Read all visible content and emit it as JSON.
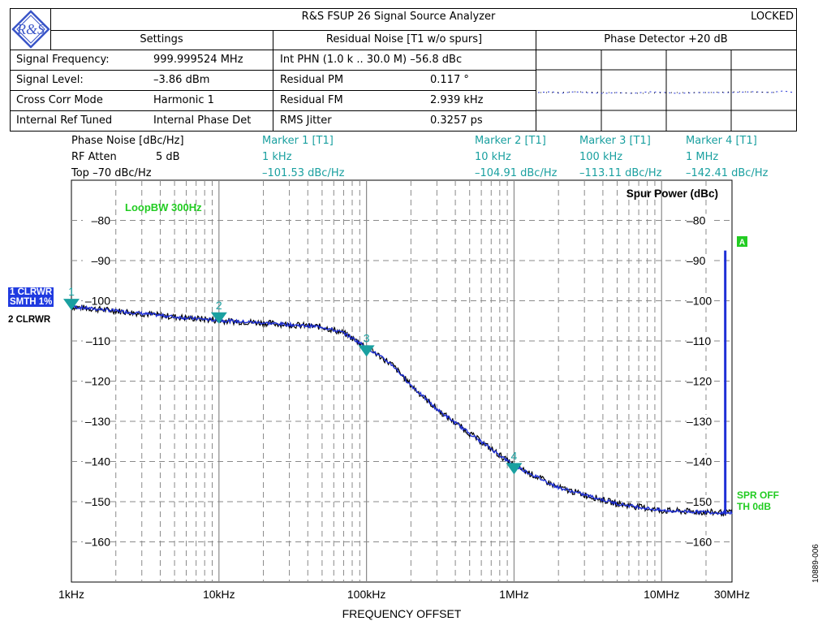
{
  "header": {
    "title": "R&S FSUP 26 Signal Source Analyzer",
    "status": "LOCKED",
    "settings_label": "Settings",
    "residual_label": "Residual Noise [T1 w/o spurs]",
    "phase_detector_label": "Phase Detector +20 dB",
    "logo_text": "R&S"
  },
  "settings": [
    {
      "label": "Signal Frequency:",
      "value": "999.999524 MHz"
    },
    {
      "label": "Signal Level:",
      "value": "–3.86 dBm"
    },
    {
      "label": "Cross Corr Mode",
      "value": "Harmonic 1"
    },
    {
      "label": "Internal Ref Tuned",
      "value": "Internal Phase Det"
    }
  ],
  "residual": [
    {
      "label": "Int PHN (1.0 k .. 30.0 M)  –56.8 dBc",
      "value": ""
    },
    {
      "label": "Residual PM",
      "value": "0.117 °"
    },
    {
      "label": "Residual FM",
      "value": "2.939 kHz"
    },
    {
      "label": "RMS Jitter",
      "value": "0.3257 ps"
    }
  ],
  "info": {
    "phase_noise": "Phase Noise [dBc/Hz]",
    "rf_atten_label": "RF Atten",
    "rf_atten_value": "5 dB",
    "top": "Top  –70 dBc/Hz"
  },
  "markers": [
    {
      "title": "Marker 1 [T1]",
      "freq": "1 kHz",
      "level": "–101.53 dBc/Hz",
      "num": "1"
    },
    {
      "title": "Marker 2 [T1]",
      "freq": "10 kHz",
      "level": "–104.91 dBc/Hz",
      "num": "2"
    },
    {
      "title": "Marker 3 [T1]",
      "freq": "100 kHz",
      "level": "–113.11 dBc/Hz",
      "num": "3"
    },
    {
      "title": "Marker 4 [T1]",
      "freq": "1 MHz",
      "level": "–142.41 dBc/Hz",
      "num": "4"
    }
  ],
  "traces": {
    "t1_line1": "1 CLRWR",
    "t1_line2": "SMTH 1%",
    "t2": "2 CLRWR"
  },
  "annotations": {
    "loop_bw": "LoopBW 300Hz",
    "spur_power": "Spur Power (dBc)",
    "spur_marker": "A",
    "spr_off": "SPR OFF",
    "th": "TH 0dB",
    "figure_id": "10889-006"
  },
  "colors": {
    "trace1": "#1e2fd6",
    "trace2": "#000000",
    "marker": "#1aa0a0",
    "green": "#22cc22",
    "spur": "#1e2fd6"
  },
  "chart_data": {
    "type": "line",
    "xscale": "log",
    "xlabel": "FREQUENCY OFFSET",
    "ylabel": "",
    "xlim": [
      1000,
      30000000
    ],
    "ylim": [
      -170,
      -70
    ],
    "x_tick_labels": [
      "1kHz",
      "10kHz",
      "100kHz",
      "1MHz",
      "10MHz",
      "30MHz"
    ],
    "x_tick_values": [
      1000,
      10000,
      100000,
      1000000,
      10000000,
      30000000
    ],
    "y_ticks": [
      -80,
      -90,
      -100,
      -110,
      -120,
      -130,
      -140,
      -150,
      -160
    ],
    "y_tick_labels": [
      "–80",
      "–90",
      "–100",
      "–110",
      "–120",
      "–130",
      "–140",
      "–150",
      "–160"
    ],
    "series": [
      {
        "name": "1 CLRWR",
        "x": [
          1000,
          2000,
          5000,
          10000,
          20000,
          50000,
          70000,
          100000,
          150000,
          200000,
          300000,
          500000,
          1000000,
          2000000,
          5000000,
          10000000,
          20000000,
          30000000
        ],
        "y": [
          -101.5,
          -102.5,
          -104,
          -104.9,
          -105.5,
          -106.5,
          -108,
          -111.5,
          -116,
          -121,
          -127,
          -133,
          -141,
          -146.5,
          -150.5,
          -152.2,
          -152.6,
          -152.8
        ]
      }
    ],
    "markers": [
      {
        "x": 1000,
        "y": -101.53
      },
      {
        "x": 10000,
        "y": -104.91
      },
      {
        "x": 100000,
        "y": -113.11
      },
      {
        "x": 1000000,
        "y": -142.41
      }
    ],
    "spur": {
      "x": 27000000,
      "y_top": -87.5,
      "y_bottom": -152.8
    }
  }
}
